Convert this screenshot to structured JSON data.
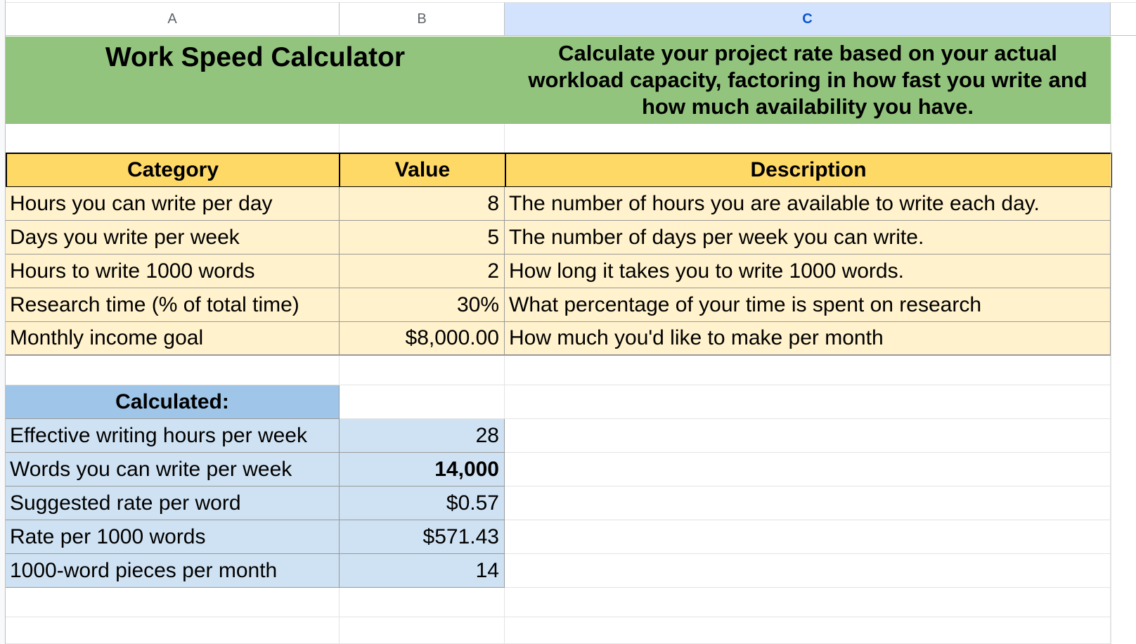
{
  "columns": [
    "A",
    "B",
    "C"
  ],
  "title": "Work Speed Calculator",
  "title_description": "Calculate your project rate based on your actual workload capacity, factoring in how fast you write and how much availability you have.",
  "inputs": {
    "headers": {
      "category": "Category",
      "value": "Value",
      "description": "Description"
    },
    "rows": [
      {
        "category": "Hours you can write per day",
        "value": "8",
        "description": "The number of hours you are available to write each day."
      },
      {
        "category": "Days you write per week",
        "value": "5",
        "description": "The number of days per week you can write."
      },
      {
        "category": "Hours to write 1000 words",
        "value": "2",
        "description": "How long it takes you to write 1000 words."
      },
      {
        "category": "Research time (% of total time)",
        "value": "30%",
        "description": "What percentage of your time is spent on research"
      },
      {
        "category": "Monthly income goal",
        "value": "$8,000.00",
        "description": "How much you'd like to make per month"
      }
    ]
  },
  "calculated": {
    "header": "Calculated:",
    "rows": [
      {
        "label": "Effective writing hours per week",
        "value": "28",
        "bold": false
      },
      {
        "label": "Words you can write per week",
        "value": "14,000",
        "bold": true
      },
      {
        "label": "Suggested rate per word",
        "value": "$0.57",
        "bold": false
      },
      {
        "label": "Rate per 1000 words",
        "value": "$571.43",
        "bold": false
      },
      {
        "label": "1000-word pieces per month",
        "value": "14",
        "bold": false
      }
    ]
  },
  "colors": {
    "title_green": "#93c47d",
    "header_yellow": "#ffd966",
    "row_yellow": "#fff2cc",
    "header_blue": "#9fc5e8",
    "row_blue": "#cfe2f3",
    "selected_column": "#d3e3fd"
  }
}
